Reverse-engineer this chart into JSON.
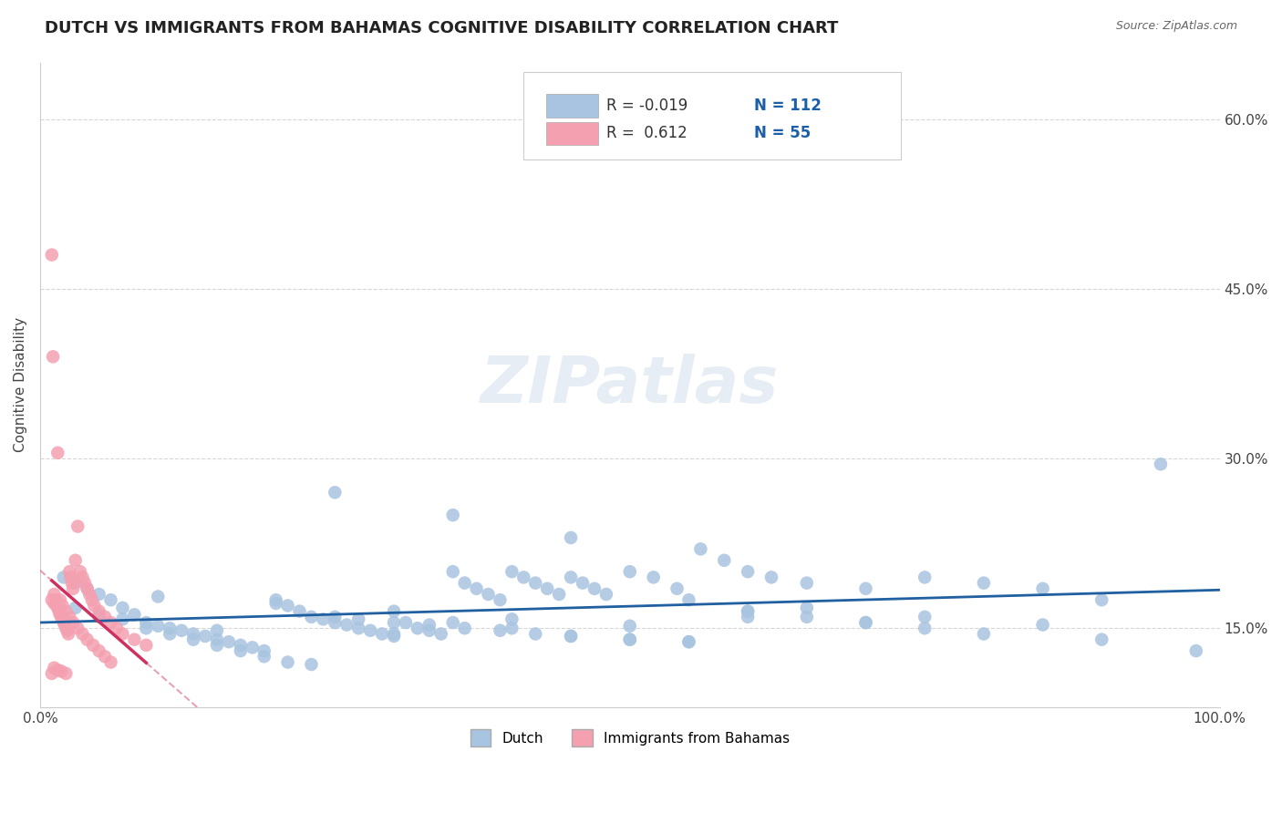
{
  "title": "DUTCH VS IMMIGRANTS FROM BAHAMAS COGNITIVE DISABILITY CORRELATION CHART",
  "source": "Source: ZipAtlas.com",
  "ylabel": "Cognitive Disability",
  "xlim": [
    0,
    1.0
  ],
  "ylim": [
    0.08,
    0.65
  ],
  "yticks": [
    0.15,
    0.3,
    0.45,
    0.6
  ],
  "ytick_labels": [
    "15.0%",
    "30.0%",
    "45.0%",
    "60.0%"
  ],
  "xticks": [
    0.0,
    0.1,
    0.2,
    0.3,
    0.4,
    0.5,
    0.6,
    0.7,
    0.8,
    0.9,
    1.0
  ],
  "xtick_labels": [
    "0.0%",
    "",
    "",
    "",
    "",
    "",
    "",
    "",
    "",
    "",
    "100.0%"
  ],
  "dutch_color": "#a8c4e0",
  "bahamas_color": "#f4a0b0",
  "dutch_line_color": "#2060a0",
  "bahamas_line_color": "#d03060",
  "R_dutch": -0.019,
  "N_dutch": 112,
  "R_bahamas": 0.612,
  "N_bahamas": 55,
  "background_color": "#ffffff",
  "grid_color": "#cccccc",
  "dutch_x": [
    0.02,
    0.03,
    0.04,
    0.05,
    0.06,
    0.07,
    0.08,
    0.09,
    0.1,
    0.11,
    0.12,
    0.13,
    0.14,
    0.15,
    0.16,
    0.17,
    0.18,
    0.19,
    0.2,
    0.21,
    0.22,
    0.23,
    0.24,
    0.25,
    0.26,
    0.27,
    0.28,
    0.29,
    0.3,
    0.31,
    0.32,
    0.33,
    0.34,
    0.35,
    0.36,
    0.37,
    0.38,
    0.39,
    0.4,
    0.41,
    0.42,
    0.43,
    0.44,
    0.45,
    0.46,
    0.47,
    0.48,
    0.5,
    0.52,
    0.54,
    0.56,
    0.58,
    0.6,
    0.62,
    0.65,
    0.7,
    0.75,
    0.8,
    0.85,
    0.9,
    0.03,
    0.05,
    0.07,
    0.09,
    0.11,
    0.13,
    0.15,
    0.17,
    0.19,
    0.21,
    0.23,
    0.25,
    0.27,
    0.3,
    0.33,
    0.36,
    0.39,
    0.42,
    0.45,
    0.5,
    0.55,
    0.6,
    0.65,
    0.7,
    0.75,
    0.3,
    0.35,
    0.4,
    0.45,
    0.5,
    0.55,
    0.6,
    0.1,
    0.2,
    0.3,
    0.4,
    0.5,
    0.6,
    0.7,
    0.8,
    0.9,
    0.95,
    0.25,
    0.35,
    0.45,
    0.55,
    0.65,
    0.75,
    0.85,
    0.98,
    0.05,
    0.15
  ],
  "dutch_y": [
    0.195,
    0.19,
    0.185,
    0.18,
    0.175,
    0.168,
    0.162,
    0.155,
    0.152,
    0.15,
    0.148,
    0.145,
    0.143,
    0.14,
    0.138,
    0.135,
    0.133,
    0.13,
    0.175,
    0.17,
    0.165,
    0.16,
    0.158,
    0.155,
    0.153,
    0.15,
    0.148,
    0.145,
    0.143,
    0.155,
    0.15,
    0.148,
    0.145,
    0.2,
    0.19,
    0.185,
    0.18,
    0.175,
    0.2,
    0.195,
    0.19,
    0.185,
    0.18,
    0.195,
    0.19,
    0.185,
    0.18,
    0.2,
    0.195,
    0.185,
    0.22,
    0.21,
    0.2,
    0.195,
    0.19,
    0.185,
    0.195,
    0.19,
    0.185,
    0.175,
    0.168,
    0.162,
    0.158,
    0.15,
    0.145,
    0.14,
    0.135,
    0.13,
    0.125,
    0.12,
    0.118,
    0.16,
    0.158,
    0.155,
    0.153,
    0.15,
    0.148,
    0.145,
    0.143,
    0.14,
    0.138,
    0.165,
    0.16,
    0.155,
    0.15,
    0.145,
    0.155,
    0.15,
    0.143,
    0.14,
    0.138,
    0.165,
    0.178,
    0.172,
    0.165,
    0.158,
    0.152,
    0.16,
    0.155,
    0.145,
    0.14,
    0.295,
    0.27,
    0.25,
    0.23,
    0.175,
    0.168,
    0.16,
    0.153,
    0.13,
    0.16,
    0.148
  ],
  "bahamas_x": [
    0.01,
    0.012,
    0.014,
    0.015,
    0.016,
    0.017,
    0.018,
    0.019,
    0.02,
    0.021,
    0.022,
    0.023,
    0.024,
    0.025,
    0.026,
    0.027,
    0.028,
    0.03,
    0.032,
    0.034,
    0.036,
    0.038,
    0.04,
    0.042,
    0.044,
    0.046,
    0.05,
    0.055,
    0.06,
    0.065,
    0.07,
    0.08,
    0.09,
    0.01,
    0.011,
    0.012,
    0.013,
    0.015,
    0.017,
    0.019,
    0.022,
    0.025,
    0.028,
    0.032,
    0.036,
    0.04,
    0.045,
    0.05,
    0.055,
    0.06,
    0.01,
    0.012,
    0.015,
    0.018,
    0.022
  ],
  "bahamas_y": [
    0.175,
    0.172,
    0.17,
    0.168,
    0.165,
    0.162,
    0.16,
    0.158,
    0.155,
    0.153,
    0.15,
    0.148,
    0.145,
    0.2,
    0.195,
    0.19,
    0.185,
    0.21,
    0.24,
    0.2,
    0.195,
    0.19,
    0.185,
    0.18,
    0.175,
    0.17,
    0.165,
    0.16,
    0.155,
    0.15,
    0.145,
    0.14,
    0.135,
    0.48,
    0.39,
    0.18,
    0.175,
    0.305,
    0.175,
    0.17,
    0.165,
    0.16,
    0.155,
    0.15,
    0.145,
    0.14,
    0.135,
    0.13,
    0.125,
    0.12,
    0.11,
    0.115,
    0.113,
    0.112,
    0.11
  ]
}
